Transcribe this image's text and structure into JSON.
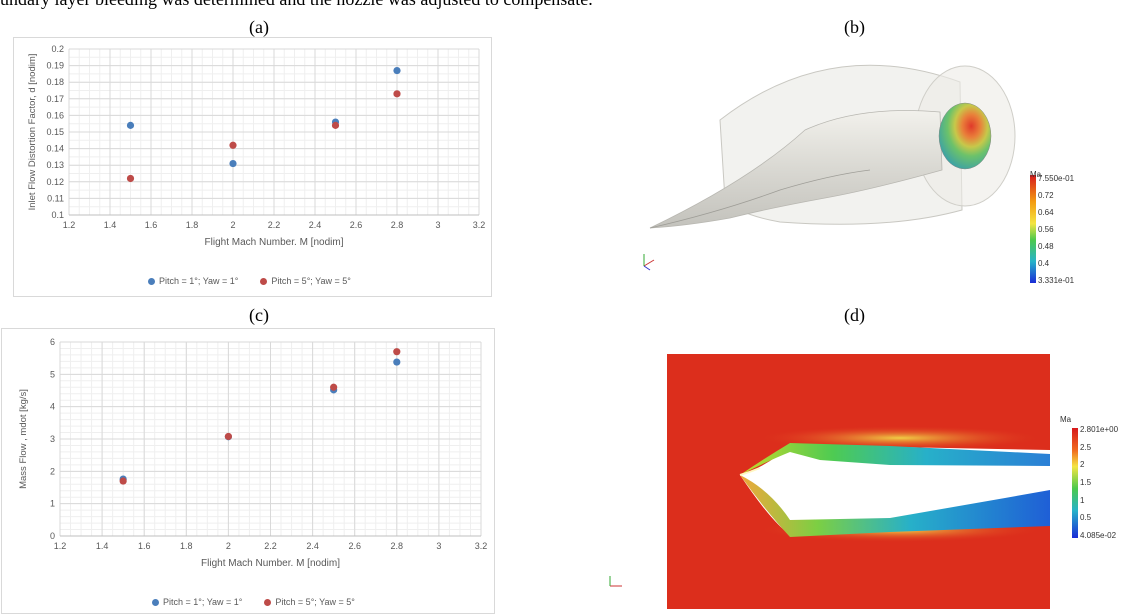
{
  "document": {
    "top_text": "undary layer bleeding was determined and the nozzle was adjusted to compensate."
  },
  "panels": {
    "a": {
      "label": "(a)"
    },
    "b": {
      "label": "(b)"
    },
    "c": {
      "label": "(c)"
    },
    "d": {
      "label": "(d)"
    }
  },
  "legend": {
    "series1": "Pitch = 1°; Yaw = 1°",
    "series2": "Pitch = 5°; Yaw = 5°"
  },
  "colors": {
    "series1": "#4a7ebb",
    "series2": "#be4b48",
    "grid_major": "#d9d9d9",
    "grid_minor": "#efefef",
    "axis_text": "#595959"
  },
  "colorbar_b": {
    "title": "Ma",
    "ticks": [
      "7.550e-01",
      "0.72",
      "0.64",
      "0.56",
      "0.48",
      "0.4",
      "3.331e-01"
    ]
  },
  "colorbar_d": {
    "title": "Ma",
    "ticks": [
      "2.801e+00",
      "2.5",
      "2",
      "1.5",
      "1",
      "0.5",
      "4.085e-02"
    ]
  },
  "chart_data": [
    {
      "type": "scatter",
      "panel": "a",
      "xlabel": "Flight Mach Number. M [nodim]",
      "ylabel": "Inlet Flow Distortion Factor, d [nodim]",
      "xlim": [
        1.2,
        3.2
      ],
      "ylim": [
        0.1,
        0.2
      ],
      "xticks": [
        "1.2",
        "1.4",
        "1.6",
        "1.8",
        "2",
        "2.2",
        "2.4",
        "2.6",
        "2.8",
        "3",
        "3.2"
      ],
      "yticks": [
        "0.1",
        "0.11",
        "0.12",
        "0.13",
        "0.14",
        "0.15",
        "0.16",
        "0.17",
        "0.18",
        "0.19",
        "0.2"
      ],
      "grid": true,
      "legend_position": "bottom",
      "series": [
        {
          "name": "Pitch = 1°; Yaw = 1°",
          "x": [
            1.5,
            2.0,
            2.5,
            2.8
          ],
          "y": [
            0.154,
            0.131,
            0.156,
            0.187
          ]
        },
        {
          "name": "Pitch = 5°; Yaw = 5°",
          "x": [
            1.5,
            2.0,
            2.5,
            2.8
          ],
          "y": [
            0.122,
            0.142,
            0.154,
            0.173
          ]
        }
      ]
    },
    {
      "type": "scatter",
      "panel": "c",
      "xlabel": "Flight Mach Number. M [nodim]",
      "ylabel": "Mass Flow , mdot [kg/s]",
      "xlim": [
        1.2,
        3.2
      ],
      "ylim": [
        0,
        6
      ],
      "xticks": [
        "1.2",
        "1.4",
        "1.6",
        "1.8",
        "2",
        "2.2",
        "2.4",
        "2.6",
        "2.8",
        "3",
        "3.2"
      ],
      "yticks": [
        "0",
        "1",
        "2",
        "3",
        "4",
        "5",
        "6"
      ],
      "grid": true,
      "legend_position": "bottom",
      "series": [
        {
          "name": "Pitch = 1°; Yaw = 1°",
          "x": [
            1.5,
            2.0,
            2.5,
            2.8
          ],
          "y": [
            1.76,
            3.07,
            4.52,
            5.38
          ]
        },
        {
          "name": "Pitch = 5°; Yaw = 5°",
          "x": [
            1.5,
            2.0,
            2.5,
            2.8
          ],
          "y": [
            1.7,
            3.08,
            4.6,
            5.7
          ]
        }
      ]
    }
  ]
}
